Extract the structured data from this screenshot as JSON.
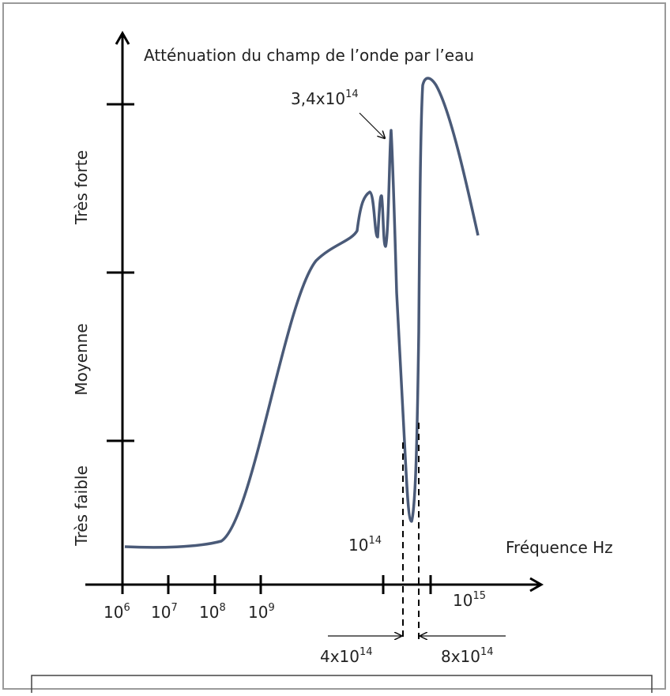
{
  "title": "Atténuation du champ de l’onde par l’eau",
  "y_labels": [
    "Très forte",
    "Moyenne",
    "Très faible"
  ],
  "x_axis_label": "Fréquence Hz",
  "x_ticks": [
    {
      "base": "10",
      "exp": "6"
    },
    {
      "base": "10",
      "exp": "7"
    },
    {
      "base": "10",
      "exp": "8"
    },
    {
      "base": "10",
      "exp": "9"
    },
    {
      "base": "10",
      "exp": "14"
    },
    {
      "base": "10",
      "exp": "15"
    }
  ],
  "annotations": {
    "peak": {
      "base": "3,4x10",
      "exp": "14"
    },
    "low_left": {
      "base": "4x10",
      "exp": "14"
    },
    "low_right": {
      "base": "8x10",
      "exp": "14"
    }
  }
}
